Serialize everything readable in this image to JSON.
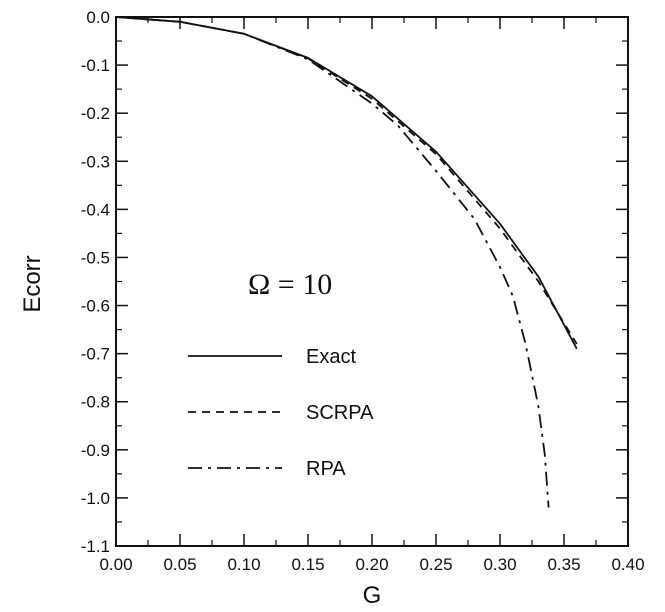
{
  "chart_data": {
    "type": "line",
    "xlabel": "G",
    "ylabel": "Ecorr",
    "xlim": [
      0.0,
      0.4
    ],
    "ylim": [
      -1.1,
      0.0
    ],
    "x_ticks": [
      "0.00",
      "0.05",
      "0.10",
      "0.15",
      "0.20",
      "0.25",
      "0.30",
      "0.35",
      "0.40"
    ],
    "y_ticks": [
      "0.0",
      "-0.1",
      "-0.2",
      "-0.3",
      "-0.4",
      "-0.5",
      "-0.6",
      "-0.7",
      "-0.8",
      "-0.9",
      "-1.0",
      "-1.1"
    ],
    "annotation": "Ω = 10",
    "legend_position": "center-left",
    "grid": false,
    "series": [
      {
        "name": "Exact",
        "style": "solid",
        "x": [
          0.0,
          0.05,
          0.1,
          0.15,
          0.2,
          0.25,
          0.3,
          0.33,
          0.36
        ],
        "y": [
          0.0,
          -0.01,
          -0.035,
          -0.085,
          -0.165,
          -0.28,
          -0.43,
          -0.54,
          -0.69
        ]
      },
      {
        "name": "SCRPA",
        "style": "dashed",
        "x": [
          0.0,
          0.05,
          0.1,
          0.15,
          0.2,
          0.25,
          0.3,
          0.33,
          0.36
        ],
        "y": [
          0.0,
          -0.01,
          -0.035,
          -0.086,
          -0.17,
          -0.285,
          -0.44,
          -0.55,
          -0.68
        ]
      },
      {
        "name": "RPA",
        "style": "dashdot",
        "x": [
          0.0,
          0.05,
          0.1,
          0.15,
          0.2,
          0.22,
          0.25,
          0.28,
          0.3,
          0.31,
          0.32,
          0.33,
          0.335,
          0.338
        ],
        "y": [
          0.0,
          -0.01,
          -0.035,
          -0.088,
          -0.18,
          -0.225,
          -0.32,
          -0.42,
          -0.52,
          -0.58,
          -0.68,
          -0.81,
          -0.91,
          -1.02
        ]
      }
    ]
  }
}
